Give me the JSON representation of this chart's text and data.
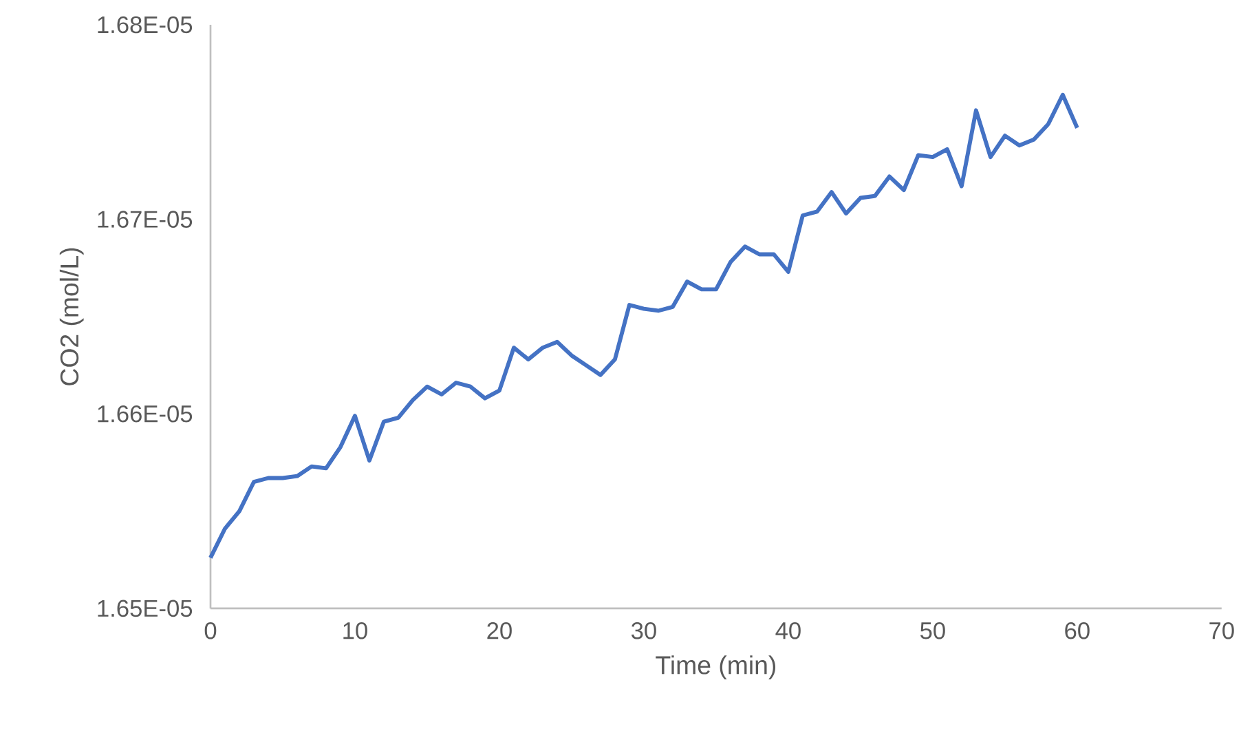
{
  "chart_data": {
    "type": "line",
    "xlabel": "Time (min)",
    "ylabel": "CO2 (mol/L)",
    "x": [
      0,
      1,
      2,
      3,
      4,
      5,
      6,
      7,
      8,
      9,
      10,
      11,
      12,
      13,
      14,
      15,
      16,
      17,
      18,
      19,
      20,
      21,
      22,
      23,
      24,
      25,
      26,
      27,
      28,
      29,
      30,
      31,
      32,
      33,
      34,
      35,
      36,
      37,
      38,
      39,
      40,
      41,
      42,
      43,
      44,
      45,
      46,
      47,
      48,
      49,
      50,
      51,
      52,
      53,
      54,
      55,
      56,
      57,
      58,
      59,
      60
    ],
    "series": [
      {
        "color": "#4472c4",
        "values": [
          1.6526e-05,
          1.6541e-05,
          1.655e-05,
          1.6565e-05,
          1.6567e-05,
          1.6567e-05,
          1.6568e-05,
          1.6573e-05,
          1.6572e-05,
          1.6583e-05,
          1.6599e-05,
          1.6576e-05,
          1.6596e-05,
          1.6598e-05,
          1.6607e-05,
          1.6614e-05,
          1.661e-05,
          1.6616e-05,
          1.6614e-05,
          1.6608e-05,
          1.6612e-05,
          1.6634e-05,
          1.6628e-05,
          1.6634e-05,
          1.6637e-05,
          1.663e-05,
          1.6625e-05,
          1.662e-05,
          1.6628e-05,
          1.6656e-05,
          1.6654e-05,
          1.6653e-05,
          1.6655e-05,
          1.6668e-05,
          1.6664e-05,
          1.6664e-05,
          1.6678e-05,
          1.6686e-05,
          1.6682e-05,
          1.6682e-05,
          1.6673e-05,
          1.6702e-05,
          1.6704e-05,
          1.6714e-05,
          1.6703e-05,
          1.6711e-05,
          1.6712e-05,
          1.6722e-05,
          1.6715e-05,
          1.6733e-05,
          1.6732e-05,
          1.6736e-05,
          1.6717e-05,
          1.6756e-05,
          1.6732e-05,
          1.6743e-05,
          1.6738e-05,
          1.6741e-05,
          1.6749e-05,
          1.6764e-05,
          1.6747e-05
        ]
      }
    ],
    "xlim": [
      0,
      70
    ],
    "xticks": [
      0,
      10,
      20,
      30,
      40,
      50,
      60,
      70
    ],
    "ylim": [
      1.65e-05,
      1.68e-05
    ],
    "yticks": [
      {
        "value": 1.65e-05,
        "label": "1.65E-05"
      },
      {
        "value": 1.66e-05,
        "label": "1.66E-05"
      },
      {
        "value": 1.67e-05,
        "label": "1.67E-05"
      },
      {
        "value": 1.68e-05,
        "label": "1.68E-05"
      }
    ],
    "grid": false,
    "legend": false,
    "marker": "none",
    "line_style": "solid"
  }
}
